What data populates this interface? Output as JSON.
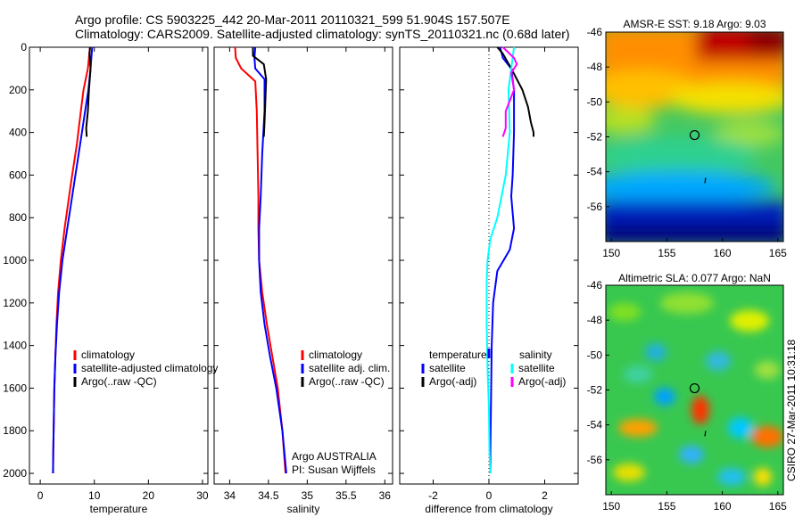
{
  "header": {
    "line1": "Argo profile: CS 5903225_442 20-Mar-2011 20110321_599 51.904S 157.507E",
    "line2": "Climatology: CARS2009. Satellite-adjusted climatology: synTS_20110321.nc (0.68d later)"
  },
  "side_note": "CSIRO 27-Mar-2011 10:31:18",
  "colors": {
    "climatology": "#ff0000",
    "satellite": "#0000ff",
    "argo": "#000000",
    "satellite_salinity": "#00ffff",
    "argo_adj_salinity": "#ff00ff"
  },
  "chart_data": [
    {
      "type": "line",
      "xlabel": "temperature",
      "xlim": [
        -2,
        31
      ],
      "ylim": [
        2050,
        0
      ],
      "xticks": [
        "0",
        "10",
        "20",
        "30"
      ],
      "yticks": [
        "0",
        "200",
        "400",
        "600",
        "800",
        "1000",
        "1200",
        "1400",
        "1600",
        "1800",
        "2000"
      ],
      "legend": {
        "position": "lower-right",
        "entries": [
          "climatology",
          "satellite-adjusted climatology",
          "Argo(..raw -QC)"
        ]
      },
      "series": [
        {
          "name": "climatology",
          "color": "#ff0000",
          "x": [
            9.2,
            8.8,
            8.0,
            7.5,
            6.8,
            5.6,
            4.5,
            3.8,
            3.3,
            3.0,
            2.8,
            2.6,
            2.5,
            2.4,
            2.35
          ],
          "y": [
            0,
            100,
            200,
            300,
            450,
            650,
            850,
            1000,
            1150,
            1300,
            1450,
            1600,
            1750,
            1900,
            2000
          ]
        },
        {
          "name": "satellite-adjusted climatology",
          "color": "#0000ff",
          "x": [
            9.6,
            9.3,
            8.9,
            8.3,
            7.4,
            6.2,
            5.0,
            4.1,
            3.5,
            3.1,
            2.8,
            2.6,
            2.5,
            2.4,
            2.35
          ],
          "y": [
            0,
            100,
            200,
            300,
            450,
            650,
            850,
            1000,
            1150,
            1300,
            1450,
            1600,
            1750,
            1900,
            2000
          ]
        },
        {
          "name": "Argo(..raw -QC)",
          "color": "#000000",
          "x": [
            9.2,
            9.1,
            9.3,
            9.0,
            8.8,
            8.5,
            8.6
          ],
          "y": [
            0,
            30,
            100,
            200,
            300,
            380,
            420
          ]
        }
      ]
    },
    {
      "type": "line",
      "xlabel": "salinity",
      "xlim": [
        33.8,
        36.1
      ],
      "ylim": [
        2050,
        0
      ],
      "xticks": [
        "34",
        "34.5",
        "35",
        "35.5",
        "36"
      ],
      "legend": {
        "position": "lower-right",
        "entries": [
          "climatology",
          "satellite adj. clim.",
          "Argo(..raw -QC)"
        ]
      },
      "annotations": [
        "Argo AUSTRALIA",
        "PI: Susan Wijffels"
      ],
      "series": [
        {
          "name": "climatology",
          "color": "#ff0000",
          "x": [
            34.07,
            34.08,
            34.15,
            34.33,
            34.35,
            34.36,
            34.37,
            34.37,
            34.38,
            34.42,
            34.48,
            34.55,
            34.62,
            34.68,
            34.72
          ],
          "y": [
            0,
            50,
            100,
            160,
            300,
            500,
            700,
            850,
            1000,
            1150,
            1300,
            1450,
            1600,
            1800,
            2000
          ]
        },
        {
          "name": "satellite adj. clim.",
          "color": "#0000ff",
          "x": [
            34.33,
            34.32,
            34.33,
            34.45,
            34.45,
            34.42,
            34.4,
            34.38,
            34.38,
            34.4,
            34.45,
            34.52,
            34.6,
            34.68,
            34.73
          ],
          "y": [
            0,
            50,
            100,
            150,
            300,
            500,
            700,
            850,
            1000,
            1150,
            1300,
            1450,
            1600,
            1800,
            2000
          ]
        },
        {
          "name": "Argo(..raw -QC)",
          "color": "#000000",
          "x": [
            34.3,
            34.3,
            34.44,
            34.47,
            34.46,
            34.45,
            34.44
          ],
          "y": [
            0,
            40,
            80,
            150,
            250,
            350,
            420
          ]
        }
      ]
    },
    {
      "type": "line",
      "xlabel": "difference from climatology",
      "xlim": [
        -3.2,
        3.2
      ],
      "ylim": [
        2050,
        0
      ],
      "xticks": [
        "-2",
        "0",
        "2"
      ],
      "legend": {
        "position": "lower",
        "temperature_title": "temperature",
        "salinity_title": "salinity",
        "temperature_entries": [
          "satellite",
          "Argo(-adj)"
        ],
        "salinity_entries": [
          "satellite",
          "Argo(-adj)"
        ]
      },
      "series": [
        {
          "name": "temperature satellite",
          "color": "#0000ff",
          "x": [
            0.4,
            0.5,
            0.8,
            0.9,
            0.9,
            0.85,
            0.8,
            0.9,
            0.75,
            0.3,
            0.15,
            0.1,
            0.08,
            0.06,
            0.05,
            0.05
          ],
          "y": [
            0,
            50,
            100,
            200,
            400,
            600,
            700,
            850,
            950,
            1050,
            1200,
            1400,
            1600,
            1800,
            1900,
            2000
          ]
        },
        {
          "name": "temperature Argo(-adj)",
          "color": "#000000",
          "x": [
            0.3,
            0.5,
            0.8,
            1.2,
            1.4,
            1.5,
            1.6,
            1.6
          ],
          "y": [
            0,
            30,
            100,
            200,
            280,
            350,
            400,
            420
          ]
        },
        {
          "name": "salinity satellite",
          "color": "#00ffff",
          "x": [
            0.9,
            0.8,
            0.7,
            0.75,
            0.6,
            0.3,
            0.05,
            -0.05,
            -0.08,
            -0.08,
            -0.05,
            0.0,
            0.02,
            0.05
          ],
          "y": [
            0,
            100,
            200,
            400,
            600,
            800,
            900,
            1000,
            1100,
            1300,
            1500,
            1700,
            1900,
            2000
          ]
        },
        {
          "name": "salinity Argo(-adj)",
          "color": "#ff00ff",
          "x": [
            0.5,
            0.9,
            1.0,
            0.8,
            0.9,
            0.6,
            0.6,
            0.5
          ],
          "y": [
            0,
            50,
            80,
            120,
            200,
            300,
            380,
            420
          ]
        }
      ]
    },
    {
      "type": "heatmap",
      "title": "AMSR-E SST: 9.18 Argo: 9.03",
      "xticks": [
        "150",
        "155",
        "160",
        "165"
      ],
      "yticks": [
        "-46",
        "-48",
        "-50",
        "-52",
        "-54",
        "-56"
      ],
      "xlim": [
        149.5,
        165.5
      ],
      "ylim": [
        -58,
        -46
      ],
      "marker": {
        "lon": 157.5,
        "lat": -51.9
      }
    },
    {
      "type": "heatmap",
      "title": "Altimetric SLA: 0.077 Argo: NaN",
      "xticks": [
        "150",
        "155",
        "160",
        "165"
      ],
      "yticks": [
        "-46",
        "-48",
        "-50",
        "-52",
        "-54",
        "-56"
      ],
      "xlim": [
        149.5,
        165.5
      ],
      "ylim": [
        -58,
        -46
      ],
      "marker": {
        "lon": 157.5,
        "lat": -51.9
      }
    }
  ]
}
